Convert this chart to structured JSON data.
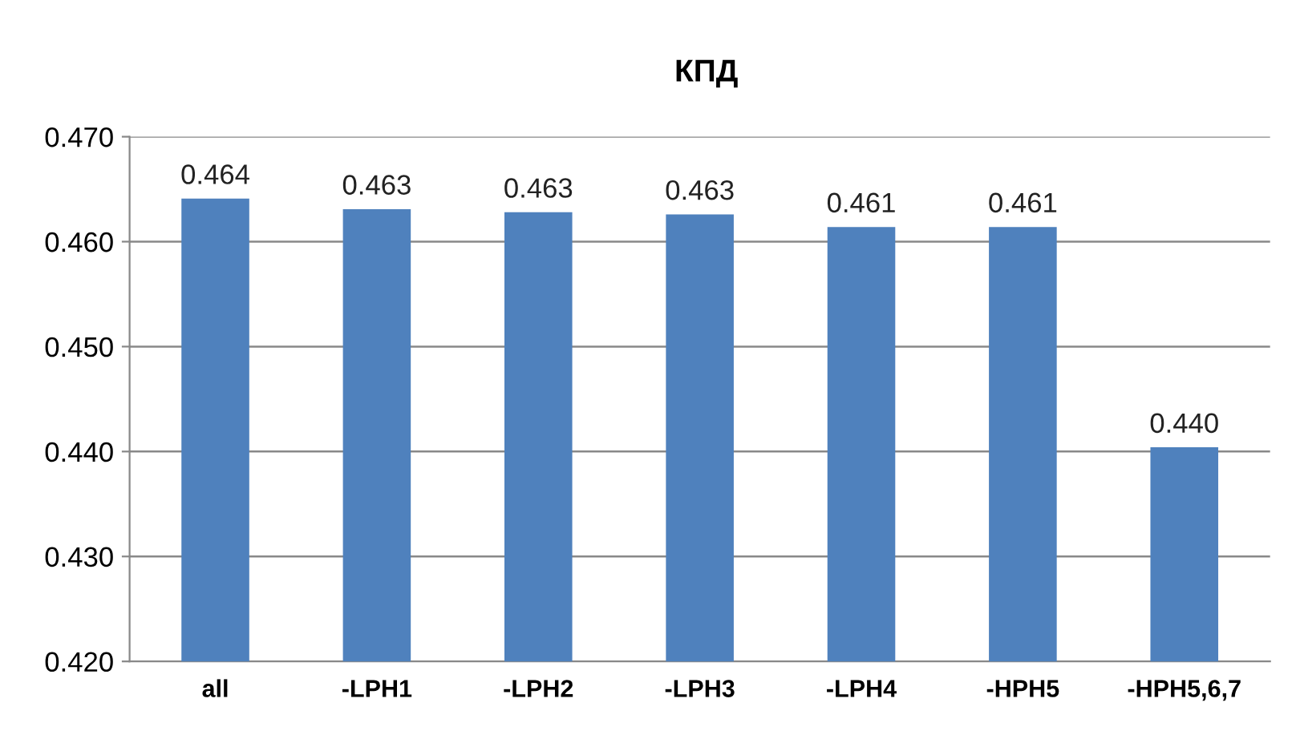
{
  "chart_data": {
    "type": "bar",
    "title": "КПД",
    "categories": [
      "all",
      "-LPH1",
      "-LPH2",
      "-LPH3",
      "-LPH4",
      "-HPH5",
      "-HPH5,6,7"
    ],
    "values": [
      0.4641,
      0.4631,
      0.4628,
      0.4626,
      0.4614,
      0.4614,
      0.4404
    ],
    "value_labels": [
      "0.464",
      "0.463",
      "0.463",
      "0.463",
      "0.461",
      "0.461",
      "0.440"
    ],
    "color": "#4f81bd",
    "ylim": [
      0.42,
      0.47
    ],
    "yticks": [
      {
        "value": 0.42,
        "label": "0.420"
      },
      {
        "value": 0.43,
        "label": "0.430"
      },
      {
        "value": 0.44,
        "label": "0.440"
      },
      {
        "value": 0.45,
        "label": "0.450"
      },
      {
        "value": 0.46,
        "label": "0.460"
      },
      {
        "value": 0.47,
        "label": "0.470"
      }
    ],
    "grid": "y"
  }
}
